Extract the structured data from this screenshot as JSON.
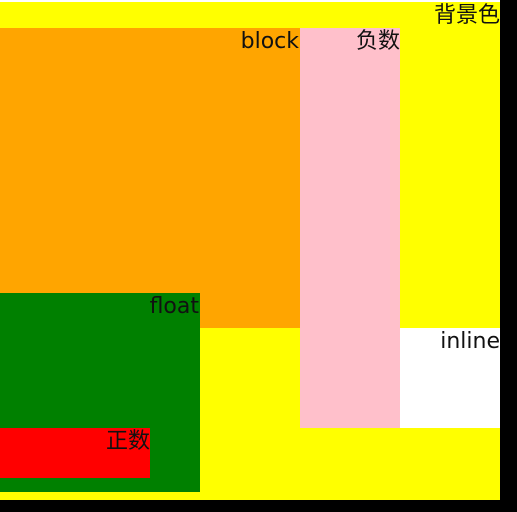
{
  "colors": {
    "background": "#ffff00",
    "block": "#ffa500",
    "negative": "#ffc0cb",
    "float": "#008000",
    "positive": "#ff0000",
    "inline": "#ffffff",
    "frame": "#000000"
  },
  "labels": {
    "background": "背景色",
    "block": "block",
    "negative": "负数",
    "float": "float",
    "inline": "inline",
    "positive": "正数"
  }
}
